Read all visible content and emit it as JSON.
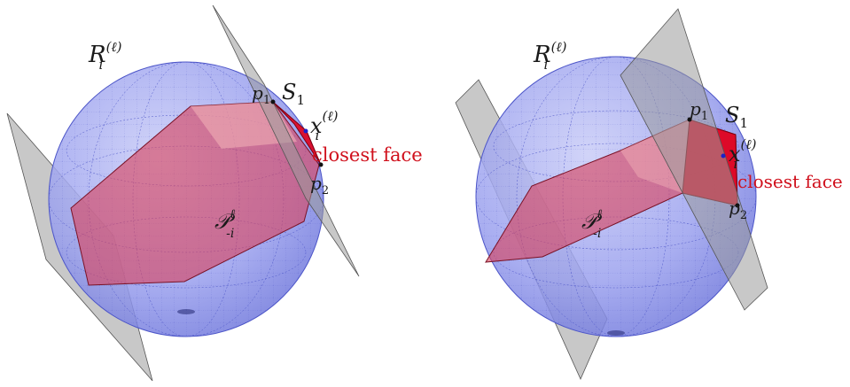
{
  "colors": {
    "sphere": "#8f96ee",
    "sphere_stroke": "#4c55c8",
    "polytope": "#d9445e",
    "closest_face": "#e0001c",
    "plane": "#8c8c8c",
    "accent_text": "#d0101c",
    "point": "#111111",
    "x_point": "#1c22c8"
  },
  "panels": [
    {
      "sphere_label": {
        "base": "R",
        "sub": "i",
        "sup": "(ℓ)"
      },
      "set_label": {
        "base": "S",
        "sub": "1"
      },
      "point_label": {
        "base": "x",
        "sub": "i",
        "sup": "(ℓ)"
      },
      "p1_label": {
        "base": "p",
        "sub": "1"
      },
      "p2_label": {
        "base": "p",
        "sub": "2"
      },
      "polytope_label": {
        "base": "𝒫",
        "sub": "-i",
        "sup": "ℓ"
      },
      "face_label": "closest face"
    },
    {
      "sphere_label": {
        "base": "R",
        "sub": "i",
        "sup": "(ℓ)"
      },
      "set_label": {
        "base": "S",
        "sub": "1"
      },
      "point_label": {
        "base": "x",
        "sub": "i",
        "sup": "(ℓ)"
      },
      "p1_label": {
        "base": "p",
        "sub": "1"
      },
      "p2_label": {
        "base": "p",
        "sub": "2"
      },
      "polytope_label": {
        "base": "𝒫",
        "sub": "-i",
        "sup": "ℓ"
      },
      "face_label": "closest face"
    }
  ]
}
